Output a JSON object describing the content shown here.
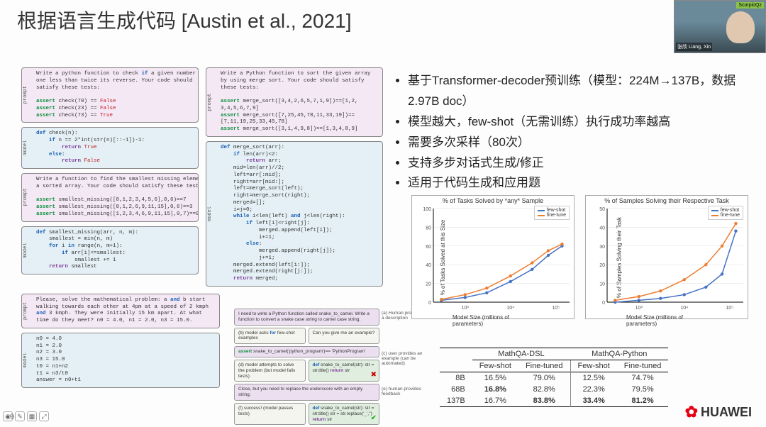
{
  "title": "根据语言生成代码 [Austin et al., 2021]",
  "page_num": "9",
  "webcam": {
    "label": "ScorpioQz",
    "name": "张欣 Liang, Xin"
  },
  "bullets": [
    "基于Transformer-decoder预训练（模型：224M→137B，数据2.97B doc）",
    "模型越大，few-shot（无需训练）执行成功率越高",
    "需要多次采样（80次）",
    "支持多步对话式生成/修正",
    "适用于代码生成和应用题"
  ],
  "code_examples": {
    "p1": "Write a python function to check if a given number is\none less than twice its reverse. Your code should\nsatisfy these tests:\n\nassert check(70) == False\nassert check(23) == False\nassert check(73) == True",
    "m1": "def check(n):\n    if n == 2*int(str(n)[::-1])-1:\n        return True\n    else:\n        return False",
    "p2": "Write a function to find the smallest missing element in\na sorted array. Your code should satisfy these tests:\n\nassert smallest_missing([0,1,2,3,4,5,6],0,6)==7\nassert smallest_missing([0,1,2,6,9,11,15],0,6)==3\nassert smallest_missing([1,2,3,4,6,9,11,15],0,7)==0",
    "m2": "def smallest_missing(arr, n, m):\n    smallest = min(n, m)\n    for i in range(n, m+1):\n        if arr[i]<=smallest:\n            smallest += 1\n    return smallest",
    "p3": "Write a Python function to sort the given array\nby using merge sort. Your code should satisfy\nthese tests:\n\nassert merge_sort([3,4,2,6,5,7,1,9])==[1,2,\n3,4,5,6,7,9]\nassert merge_sort([7,25,45,78,11,33,19])==\n[7,11,19,25,33,45,78]\nassert merge_sort([3,1,4,9,8])==[1,3,4,8,9]",
    "m3": "def merge_sort(arr):\n    if len(arr)<2:\n        return arr;\n    mid=len(arr)//2;\n    left=arr[:mid];\n    right=arr[mid:];\n    left=merge_sort(left);\n    right=merge_sort(right);\n    merged=[];\n    i=j=0;\n    while i<len(left) and j<len(right):\n        if left[i]<right[j]:\n            merged.append(left[i]);\n            i+=1;\n        else:\n            merged.append(right[j]);\n            j+=1;\n    merged.extend(left[i:]);\n    merged.extend(right[j:]);\n    return merged;",
    "p4": "Please, solve the mathematical problem: a and b start\nwalking towards each other at 4pm at a speed of 2 kmph\nand 3 kmph. They were initially 15 km apart. At what time\ndo they meet? n0 = 4.0, n1 = 2.0, n3 = 15.0.",
    "m4": "n0 = 4.0\nn1 = 2.0\nn2 = 3.0\nn3 = 15.0\nt0 = n1+n2\nt1 = n3/t0\nanswer = n0+t1"
  },
  "dialog": {
    "t0": "I need to write a Python function called\nsnake_to_camel. Write a function to convert a snake\ncase string to camel case string.",
    "a0": "(a) Human provides\na description",
    "t1": "(b) model asks for\nfew-shot examples",
    "t1b": "Can you give me an example?",
    "t2": "assert\nsnake_to_camel('python_program')==\n'PythonProgram'",
    "a2": "(c) user provides an\nexample (can be\nautomated)",
    "t3": "(d) model attempts to\nsolve the problem (but\nmodel fails tests)",
    "t3b": "def snake_to_camel(str):\n  str = str.title()\n  return str",
    "t4": "Close, but you need to replace the\nunderscore with an empty string.",
    "a4": "(e) human provides\nfeedback",
    "t5": "(f) success! (model\npasses tests)",
    "t5b": "def snake_to_camel(str):\n  str = str.title()\n  str = str.replace('_','')\n  return str"
  },
  "charts": {
    "chart1": {
      "title": "% of Tasks Solved by *any* Sample",
      "ylabel": "% of Tasks Solved at this Size",
      "xlabel": "Model Size (millions of parameters)",
      "xscale": "log",
      "xticks": [
        "10³",
        "10⁴",
        "10⁵"
      ],
      "ylim": [
        0,
        100
      ],
      "ytick_step": 20,
      "series": [
        {
          "name": "few-shot",
          "color": "#4472c4",
          "marker": "o",
          "x": [
            300,
            1000,
            3000,
            10000,
            30000,
            68000,
            137000
          ],
          "y": [
            2,
            5,
            10,
            22,
            35,
            50,
            60
          ]
        },
        {
          "name": "fine-tune",
          "color": "#ed7d31",
          "marker": "o",
          "x": [
            300,
            1000,
            3000,
            10000,
            30000,
            68000,
            137000
          ],
          "y": [
            3,
            8,
            15,
            28,
            42,
            55,
            62
          ]
        }
      ],
      "background": "#ffffff",
      "grid_color": "#dddddd"
    },
    "chart2": {
      "title": "% of Samples Solving their Respective Task",
      "ylabel": "% of Samples Solving their Task",
      "xlabel": "Model Size (millions of parameters)",
      "xscale": "log",
      "xticks": [
        "10³",
        "10⁴",
        "10⁵"
      ],
      "ylim": [
        0,
        50
      ],
      "ytick_step": 10,
      "series": [
        {
          "name": "few-shot",
          "color": "#4472c4",
          "marker": "o",
          "x": [
            300,
            1000,
            3000,
            10000,
            30000,
            68000,
            137000
          ],
          "y": [
            0,
            1,
            2,
            4,
            8,
            15,
            38
          ]
        },
        {
          "name": "fine-tune",
          "color": "#ed7d31",
          "marker": "o",
          "x": [
            300,
            1000,
            3000,
            10000,
            30000,
            68000,
            137000
          ],
          "y": [
            1,
            3,
            6,
            12,
            20,
            30,
            42
          ]
        }
      ],
      "background": "#ffffff",
      "grid_color": "#dddddd"
    }
  },
  "table": {
    "col_groups": [
      "MathQA-DSL",
      "MathQA-Python"
    ],
    "cols": [
      "Few-shot",
      "Fine-tuned",
      "Few-shot",
      "Fine-tuned"
    ],
    "rows": [
      {
        "label": "8B",
        "vals": [
          "16.5%",
          "79.0%",
          "12.5%",
          "74.7%"
        ]
      },
      {
        "label": "68B",
        "vals": [
          "16.8%",
          "82.8%",
          "22.3%",
          "79.5%"
        ],
        "bold": [
          0
        ]
      },
      {
        "label": "137B",
        "vals": [
          "16.7%",
          "83.8%",
          "33.4%",
          "81.2%"
        ],
        "bold": [
          1,
          2,
          3
        ]
      }
    ]
  },
  "huawei": "HUAWEI",
  "legend": {
    "few": "few-shot",
    "fine": "fine-tune"
  },
  "labels": {
    "prompt": "prompt",
    "model": "model"
  }
}
